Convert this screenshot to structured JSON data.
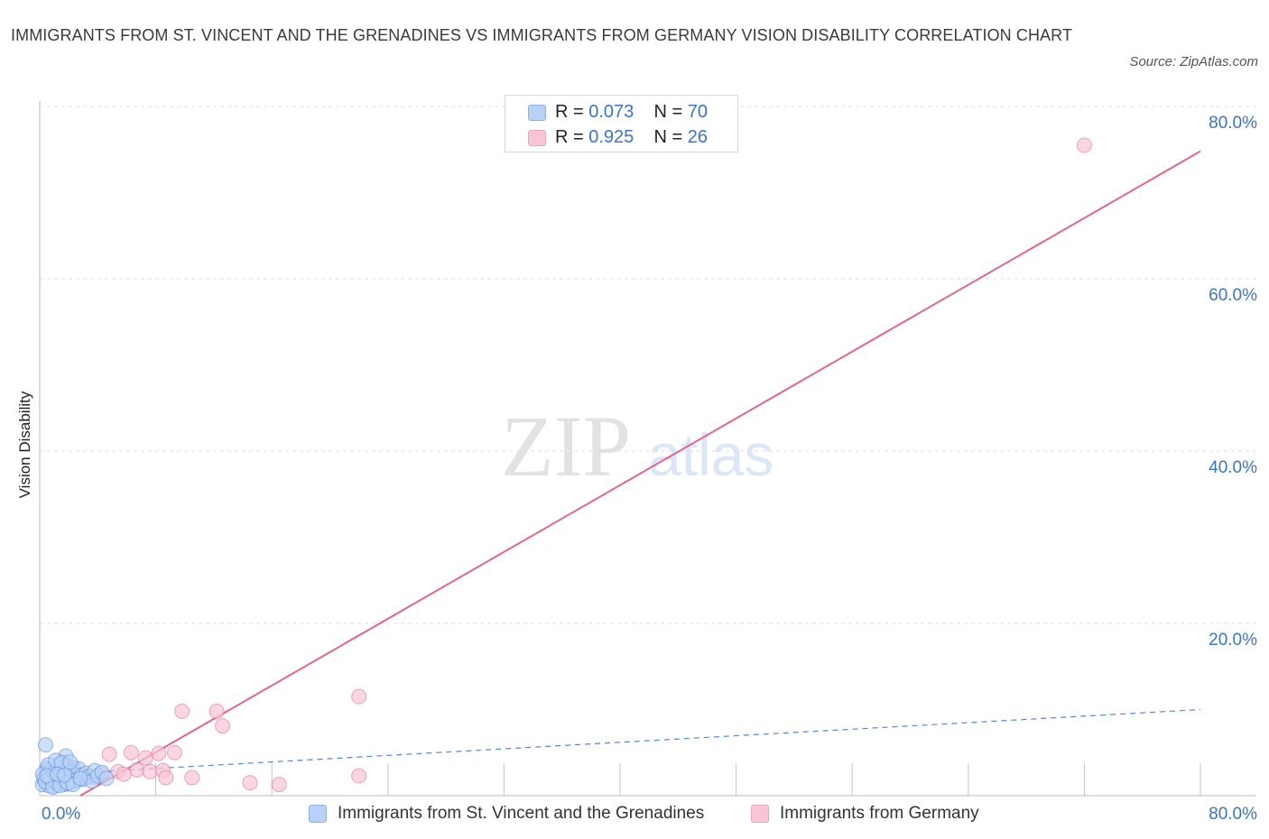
{
  "title": "IMMIGRANTS FROM ST. VINCENT AND THE GRENADINES VS IMMIGRANTS FROM GERMANY VISION DISABILITY CORRELATION CHART",
  "source": "Source: ZipAtlas.com",
  "watermark": {
    "zip": "ZIP",
    "atlas": "atlas"
  },
  "stats": [
    {
      "r_label": "R =",
      "r_value": "0.073",
      "n_label": "N =",
      "n_value": "70"
    },
    {
      "r_label": "R =",
      "r_value": "0.925",
      "n_label": "N =",
      "n_value": "26"
    }
  ],
  "legend": [
    "Immigrants from St. Vincent and the Grenadines",
    "Immigrants from Germany"
  ],
  "colors": {
    "blue": "#4f86d8",
    "blue_fill": "#b9d1f5",
    "pink": "#e0668f",
    "pink_fill": "#f8c5d5",
    "tick_text": "#3a74c9"
  },
  "chart_data": {
    "type": "scatter",
    "xlabel": "",
    "ylabel": "Vision Disability",
    "xlim": [
      0,
      80
    ],
    "ylim": [
      0,
      80
    ],
    "x_tick_labels": [
      "0.0%",
      "80.0%"
    ],
    "y_tick_labels": [
      "20.0%",
      "40.0%",
      "60.0%",
      "80.0%"
    ],
    "y_ticks": [
      20,
      40,
      60,
      80
    ],
    "x_minor_ticks": [
      8,
      16,
      24,
      32,
      40,
      48,
      56,
      64,
      72,
      80
    ],
    "grid": "horizontal dashed",
    "series": [
      {
        "name": "Immigrants from St. Vincent and the Grenadines",
        "color": "#4f86d8",
        "trend": {
          "x": [
            0,
            80
          ],
          "y": [
            2.4,
            10.0
          ],
          "style": "dashed"
        },
        "points": [
          [
            0.4,
            5.9
          ],
          [
            0.2,
            1.3
          ],
          [
            0.3,
            2.2
          ],
          [
            0.5,
            3.2
          ],
          [
            0.6,
            1.8
          ],
          [
            0.7,
            2.6
          ],
          [
            0.8,
            1.5
          ],
          [
            0.9,
            2.9
          ],
          [
            1.0,
            1.1
          ],
          [
            1.1,
            2.3
          ],
          [
            1.2,
            3.5
          ],
          [
            1.3,
            1.9
          ],
          [
            1.4,
            2.8
          ],
          [
            1.5,
            1.6
          ],
          [
            1.6,
            3.9
          ],
          [
            1.7,
            2.1
          ],
          [
            1.8,
            4.6
          ],
          [
            1.9,
            2.5
          ],
          [
            2.0,
            1.4
          ],
          [
            2.1,
            3.0
          ],
          [
            2.2,
            2.0
          ],
          [
            2.3,
            3.3
          ],
          [
            2.4,
            1.7
          ],
          [
            2.6,
            2.4
          ],
          [
            0.3,
            1.9
          ],
          [
            0.5,
            2.7
          ],
          [
            0.6,
            1.2
          ],
          [
            0.8,
            3.1
          ],
          [
            0.9,
            2.2
          ],
          [
            1.0,
            1.8
          ],
          [
            1.1,
            2.9
          ],
          [
            1.2,
            1.4
          ],
          [
            1.3,
            3.6
          ],
          [
            1.4,
            2.3
          ],
          [
            1.5,
            1.9
          ],
          [
            1.6,
            2.7
          ],
          [
            1.7,
            1.3
          ],
          [
            1.8,
            2.6
          ],
          [
            1.9,
            3.4
          ],
          [
            2.0,
            2.1
          ],
          [
            0.2,
            2.5
          ],
          [
            0.4,
            1.6
          ],
          [
            0.7,
            2.0
          ],
          [
            1.0,
            2.6
          ],
          [
            1.3,
            2.2
          ],
          [
            1.6,
            1.7
          ],
          [
            2.2,
            2.8
          ],
          [
            2.5,
            1.8
          ],
          [
            2.7,
            3.1
          ],
          [
            2.9,
            2.4
          ],
          [
            3.0,
            1.9
          ],
          [
            3.2,
            2.6
          ],
          [
            3.4,
            2.2
          ],
          [
            3.6,
            1.7
          ],
          [
            3.8,
            2.9
          ],
          [
            4.0,
            2.3
          ],
          [
            4.3,
            2.7
          ],
          [
            4.6,
            2.0
          ],
          [
            0.6,
            3.6
          ],
          [
            1.1,
            4.1
          ],
          [
            1.5,
            3.8
          ],
          [
            2.1,
            3.9
          ],
          [
            0.9,
            1.0
          ],
          [
            1.4,
            1.2
          ],
          [
            1.9,
            1.5
          ],
          [
            2.3,
            1.3
          ],
          [
            0.5,
            2.3
          ],
          [
            1.2,
            2.5
          ],
          [
            1.7,
            2.4
          ],
          [
            2.8,
            2.0
          ]
        ]
      },
      {
        "name": "Immigrants from Germany",
        "color": "#e0668f",
        "trend": {
          "x": [
            2.8,
            80
          ],
          "y": [
            0,
            74.8
          ],
          "style": "solid"
        },
        "points": [
          [
            72,
            75.5
          ],
          [
            22.0,
            11.5
          ],
          [
            9.8,
            9.8
          ],
          [
            12.2,
            9.8
          ],
          [
            12.6,
            8.1
          ],
          [
            6.3,
            5.0
          ],
          [
            4.8,
            4.8
          ],
          [
            8.2,
            4.9
          ],
          [
            9.3,
            5.0
          ],
          [
            7.3,
            4.4
          ],
          [
            4.3,
            2.5
          ],
          [
            5.4,
            2.8
          ],
          [
            6.7,
            3.0
          ],
          [
            7.6,
            2.8
          ],
          [
            8.5,
            2.9
          ],
          [
            3.3,
            2.3
          ],
          [
            2.8,
            2.2
          ],
          [
            1.3,
            2.6
          ],
          [
            1.9,
            2.1
          ],
          [
            3.8,
            2.1
          ],
          [
            5.8,
            2.5
          ],
          [
            8.7,
            2.1
          ],
          [
            10.5,
            2.1
          ],
          [
            14.5,
            1.5
          ],
          [
            16.5,
            1.3
          ],
          [
            22.0,
            2.3
          ]
        ]
      }
    ]
  }
}
